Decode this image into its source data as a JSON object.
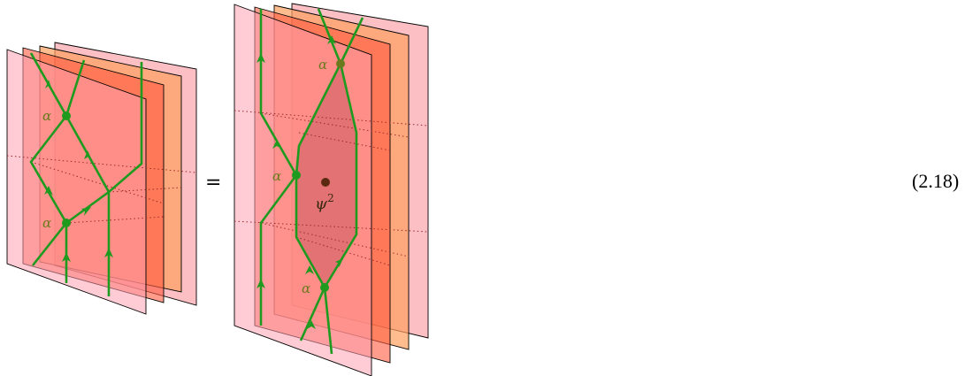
{
  "left_diagram": {
    "labels": [
      "α",
      "α"
    ]
  },
  "equals": "=",
  "right_diagram": {
    "labels": [
      "α",
      "α",
      "α"
    ],
    "bulk_label": "ψ",
    "bulk_exponent": "2"
  },
  "equation_number": "(2.18)"
}
